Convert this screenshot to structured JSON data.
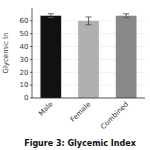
{
  "chart_data": {
    "type": "bar",
    "title": "Figure 3: Glycemic Index",
    "categories": [
      "Male",
      "Female",
      "Combined"
    ],
    "values": [
      64,
      60,
      64
    ],
    "errors": [
      1.5,
      3,
      1.5
    ],
    "colors": [
      "#111111",
      "#b0b0b0",
      "#888888"
    ],
    "ylabel": "Glycemic In",
    "ylim": [
      0,
      70
    ],
    "yticks": [
      0,
      10,
      20,
      30,
      40,
      50,
      60
    ]
  }
}
